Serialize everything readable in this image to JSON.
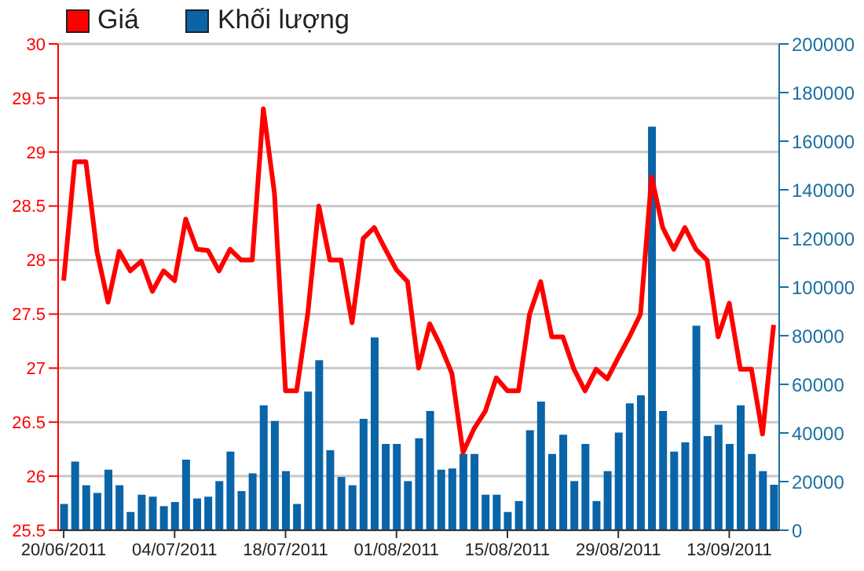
{
  "chart_data": {
    "type": "line",
    "categories": [
      "20/06/2011",
      null,
      null,
      null,
      null,
      null,
      null,
      null,
      null,
      null,
      "04/07/2011",
      null,
      null,
      null,
      null,
      null,
      null,
      null,
      null,
      null,
      "18/07/2011",
      null,
      null,
      null,
      null,
      null,
      null,
      null,
      null,
      null,
      "01/08/2011",
      null,
      null,
      null,
      null,
      null,
      null,
      null,
      null,
      null,
      "15/08/2011",
      null,
      null,
      null,
      null,
      null,
      null,
      null,
      null,
      null,
      "29/08/2011",
      null,
      null,
      null,
      null,
      null,
      null,
      null,
      null,
      null,
      "13/09/2011",
      null,
      null,
      null,
      null
    ],
    "series": [
      {
        "name": "Giá",
        "color": "#ff0000",
        "values": [
          27.81,
          28.91,
          28.91,
          28.08,
          27.61,
          28.08,
          27.9,
          27.99,
          27.71,
          27.9,
          27.81,
          28.38,
          28.1,
          28.09,
          27.9,
          28.1,
          28.0,
          28.0,
          29.4,
          28.62,
          26.79,
          26.79,
          27.5,
          28.5,
          28.0,
          28.0,
          27.42,
          28.2,
          28.3,
          28.1,
          27.91,
          27.8,
          27.0,
          27.41,
          27.2,
          26.95,
          26.22,
          26.44,
          26.6,
          26.91,
          26.79,
          26.79,
          27.5,
          27.8,
          27.29,
          27.29,
          26.99,
          26.79,
          26.99,
          26.9,
          27.1,
          27.29,
          27.5,
          28.77,
          28.3,
          28.1,
          28.3,
          28.1,
          28.0,
          27.29,
          27.6,
          26.99,
          26.99,
          26.39,
          27.4
        ]
      },
      {
        "name": "Khối lượng",
        "type": "bar",
        "axis": "y2",
        "color": "#0a64a8",
        "values": [
          10800,
          28200,
          18500,
          15300,
          24900,
          18500,
          7500,
          14600,
          13800,
          9900,
          11600,
          29000,
          13100,
          13800,
          20200,
          32300,
          16100,
          23400,
          51400,
          44900,
          24300,
          10800,
          57000,
          69900,
          32900,
          21900,
          18500,
          45800,
          79300,
          35500,
          35500,
          20200,
          37800,
          49000,
          24900,
          25400,
          31400,
          31400,
          14600,
          14600,
          7500,
          12000,
          41100,
          52900,
          31400,
          39300,
          20200,
          35500,
          12000,
          24300,
          40200,
          52200,
          55500,
          166000,
          49000,
          32300,
          36100,
          84100,
          38700,
          43400,
          35500,
          51400,
          31400,
          24300,
          18700
        ]
      }
    ],
    "ylim": [
      25.5,
      30
    ],
    "yticks": [
      25.5,
      26,
      26.5,
      27,
      27.5,
      28,
      28.5,
      29,
      29.5,
      30
    ],
    "y2lim": [
      0,
      200000
    ],
    "y2ticks": [
      0,
      20000,
      40000,
      60000,
      80000,
      100000,
      120000,
      140000,
      160000,
      180000,
      200000
    ],
    "grid": "y",
    "legend": "top left",
    "marker": "none",
    "line_style": "solid"
  }
}
